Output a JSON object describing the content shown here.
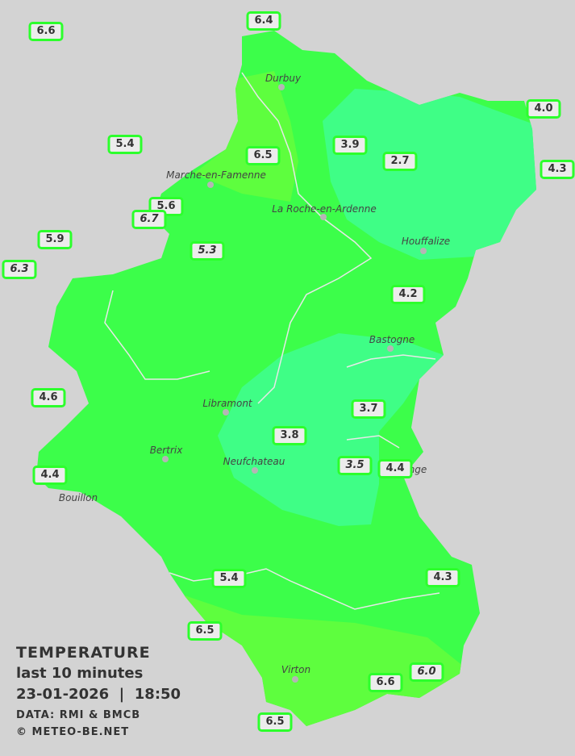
{
  "legend": {
    "title": "TEMPERATURE",
    "subtitle": "last 10 minutes",
    "datetime": "23-01-2026  |  18:50",
    "source": "DATA: RMI & BMCB",
    "copyright": "© METEO-BE.NET"
  },
  "colors": {
    "background": "#d3d3d3",
    "green": "#3cfe4a",
    "light_green": "#5efe3e",
    "teal": "#3ffe86",
    "label_border": "#2cff2c"
  },
  "cities": [
    {
      "name": "Durbuy"
    },
    {
      "name": "Marche-en-Famenne"
    },
    {
      "name": "La Roche-en-Ardenne"
    },
    {
      "name": "Houffalize"
    },
    {
      "name": "Bastogne"
    },
    {
      "name": "Libramont"
    },
    {
      "name": "Bertrix"
    },
    {
      "name": "Neufchateau"
    },
    {
      "name": "Bouillon"
    },
    {
      "name": "Virton"
    },
    {
      "name": "nge"
    }
  ],
  "stations": [
    {
      "value": "6.6"
    },
    {
      "value": "6.4"
    },
    {
      "value": "5.4"
    },
    {
      "value": "6.5"
    },
    {
      "value": "3.9"
    },
    {
      "value": "2.7"
    },
    {
      "value": "4.0"
    },
    {
      "value": "4.3"
    },
    {
      "value": "5.6"
    },
    {
      "value": "6.7",
      "italic": true
    },
    {
      "value": "5.9"
    },
    {
      "value": "6.3",
      "italic": true
    },
    {
      "value": "5.3",
      "italic": true
    },
    {
      "value": "4.2"
    },
    {
      "value": "4.6"
    },
    {
      "value": "3.7"
    },
    {
      "value": "3.8"
    },
    {
      "value": "3.5",
      "italic": true
    },
    {
      "value": "4.4"
    },
    {
      "value": "4.4"
    },
    {
      "value": "5.4"
    },
    {
      "value": "4.3"
    },
    {
      "value": "6.5"
    },
    {
      "value": "6.6"
    },
    {
      "value": "6.0",
      "italic": true
    },
    {
      "value": "6.5"
    }
  ]
}
